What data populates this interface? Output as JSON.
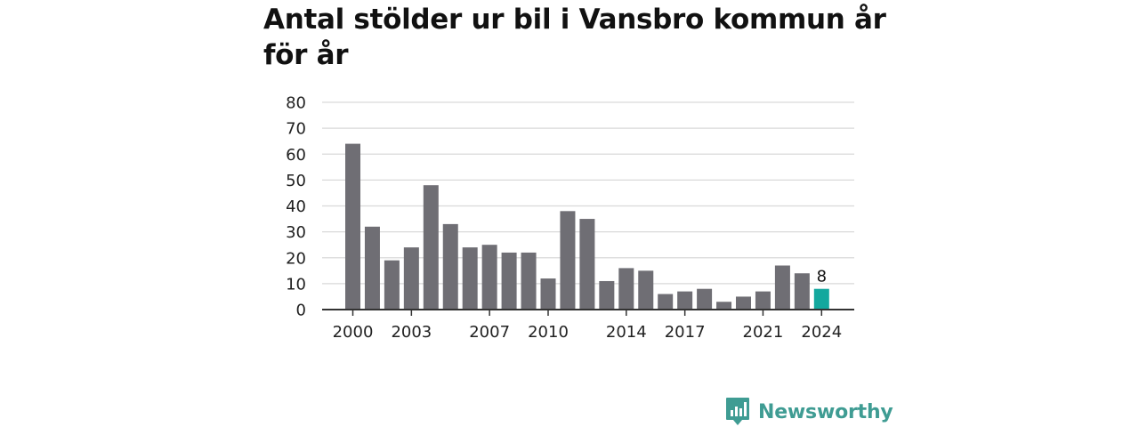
{
  "title": "Antal stölder ur bil i Vansbro kommun år för år",
  "brand": {
    "name": "Newsworthy",
    "logo_icon": "bar-chart-speech-bubble-icon",
    "color": "#3f9c93"
  },
  "chart_data": {
    "type": "bar",
    "title": "Antal stölder ur bil i Vansbro kommun år för år",
    "xlabel": "",
    "ylabel": "",
    "categories": [
      "2000",
      "2001",
      "2002",
      "2003",
      "2004",
      "2005",
      "2006",
      "2007",
      "2008",
      "2009",
      "2010",
      "2011",
      "2012",
      "2013",
      "2014",
      "2015",
      "2016",
      "2017",
      "2018",
      "2019",
      "2020",
      "2021",
      "2022",
      "2023",
      "2024"
    ],
    "values": [
      64,
      32,
      19,
      24,
      48,
      33,
      24,
      25,
      22,
      22,
      12,
      38,
      35,
      11,
      16,
      15,
      6,
      7,
      8,
      3,
      5,
      7,
      17,
      14,
      8
    ],
    "x_tick_labels": [
      "2000",
      "2003",
      "2007",
      "2010",
      "2014",
      "2017",
      "2021",
      "2024"
    ],
    "y_ticks": [
      0,
      10,
      20,
      30,
      40,
      50,
      60,
      70,
      80
    ],
    "ylim": [
      0,
      80
    ],
    "grid": true,
    "legend": "none",
    "highlight": {
      "category": "2024",
      "value_label": "8"
    },
    "colors": {
      "bar": "#6f6e74",
      "highlight_bar": "#13a89e",
      "grid": "#d9d9d9",
      "axis": "#333333"
    }
  }
}
